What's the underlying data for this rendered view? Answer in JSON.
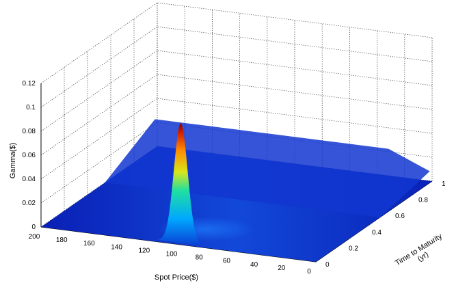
{
  "chart_data": {
    "type": "surface",
    "xlabel": "Spot Price($)",
    "ylabel": "Time to Maturity (yr)",
    "ylabel_lines": [
      "Time to Maturity",
      "(yr)"
    ],
    "zlabel": "Gamma($)",
    "xlim": [
      0,
      200
    ],
    "ylim": [
      0,
      1
    ],
    "zlim": [
      0,
      0.12
    ],
    "x_ticks": [
      0,
      20,
      40,
      60,
      80,
      100,
      120,
      140,
      160,
      180,
      200
    ],
    "y_ticks": [
      0,
      0.2,
      0.4,
      0.6,
      0.8,
      1
    ],
    "z_ticks": [
      0,
      0.02,
      0.04,
      0.06,
      0.08,
      0.1,
      0.12
    ],
    "x_tick_labels": [
      "0",
      "20",
      "40",
      "60",
      "80",
      "100",
      "120",
      "140",
      "160",
      "180",
      "200"
    ],
    "y_tick_labels": [
      "0",
      "0.2",
      "0.4",
      "0.6",
      "0.8",
      "1"
    ],
    "z_tick_labels": [
      "0",
      "0.02",
      "0.04",
      "0.06",
      "0.08",
      "0.1",
      "0.12"
    ],
    "strike": 100,
    "peak_gamma": 0.1,
    "peak_time": 0.02,
    "plateau_gamma": 0.06,
    "colormap": "jet",
    "grid": true
  }
}
